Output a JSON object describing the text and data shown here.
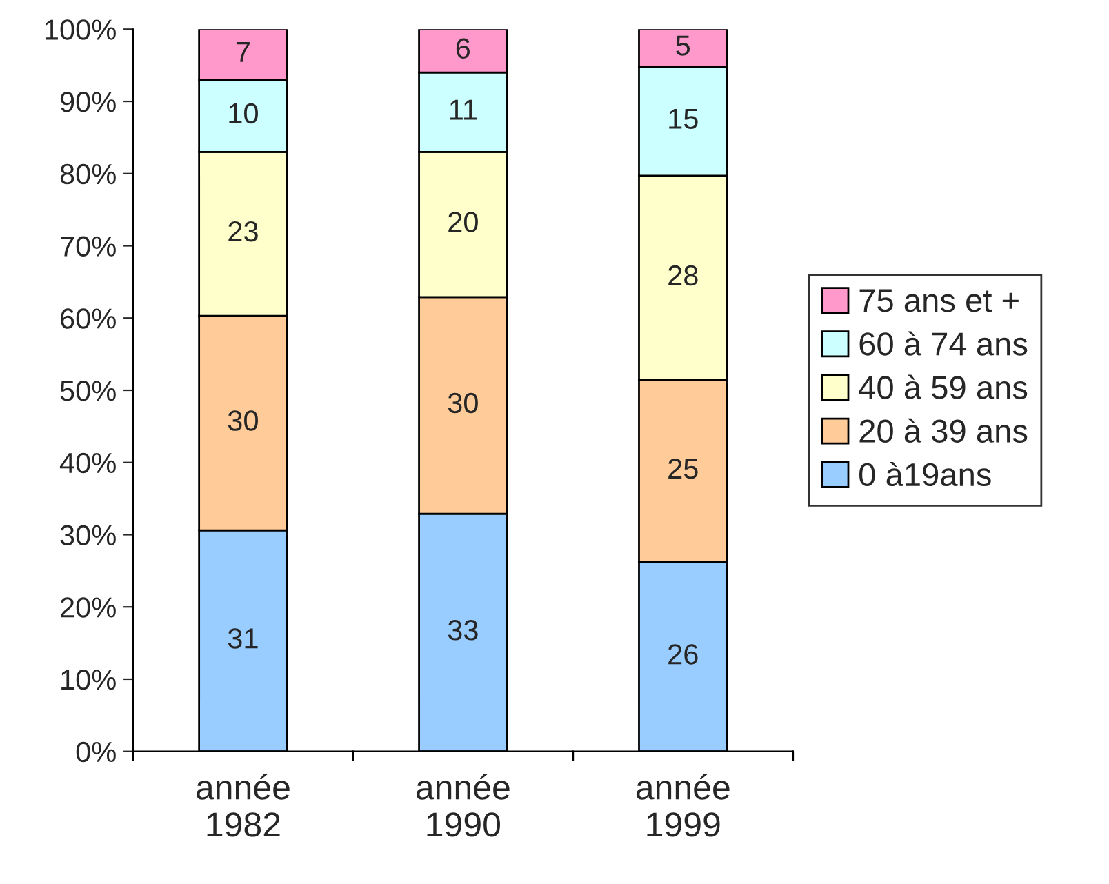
{
  "chart_data": {
    "type": "bar",
    "stacked": true,
    "categories": [
      "année\n1982",
      "année\n1990",
      "année\n1999"
    ],
    "series": [
      {
        "name": "0 à19ans",
        "color": "#99ccff",
        "values": [
          30.6,
          32.9,
          26.2
        ],
        "value_labels": [
          "31",
          "33",
          "26"
        ]
      },
      {
        "name": "20 à 39 ans",
        "color": "#ffcc99",
        "values": [
          29.7,
          30.0,
          25.2
        ],
        "value_labels": [
          "30",
          "30",
          "25"
        ]
      },
      {
        "name": "40 à 59 ans",
        "color": "#ffffcc",
        "values": [
          22.7,
          20.1,
          28.3
        ],
        "value_labels": [
          "23",
          "20",
          "28"
        ]
      },
      {
        "name": "60 à 74 ans",
        "color": "#ccffff",
        "values": [
          10.0,
          11.0,
          15.1
        ],
        "value_labels": [
          "10",
          "11",
          "15"
        ]
      },
      {
        "name": "75 ans et +",
        "color": "#ff99cc",
        "values": [
          7.0,
          6.0,
          5.2
        ],
        "value_labels": [
          "7",
          "6",
          "5"
        ]
      }
    ],
    "ylim": [
      0,
      100
    ],
    "yticks": [
      {
        "value": 0,
        "label": "0%"
      },
      {
        "value": 10,
        "label": "10%"
      },
      {
        "value": 20,
        "label": "20%"
      },
      {
        "value": 30,
        "label": "30%"
      },
      {
        "value": 40,
        "label": "40%"
      },
      {
        "value": 50,
        "label": "50%"
      },
      {
        "value": 60,
        "label": "60%"
      },
      {
        "value": 70,
        "label": "70%"
      },
      {
        "value": 80,
        "label": "80%"
      },
      {
        "value": 90,
        "label": "90%"
      },
      {
        "value": 100,
        "label": "100%"
      }
    ],
    "grid": false,
    "legend": "right"
  }
}
